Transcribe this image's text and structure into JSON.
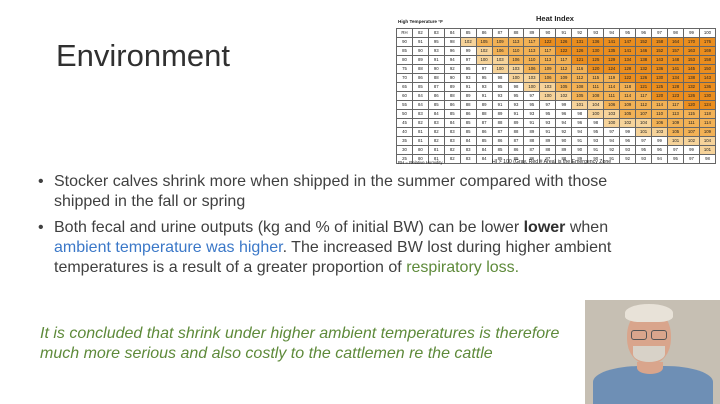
{
  "slide": {
    "title": "Environment",
    "heat_index": {
      "title": "Heat Index",
      "subtitle": "High Temperature °F",
      "header": [
        "RH",
        "82",
        "83",
        "84",
        "85",
        "86",
        "87",
        "88",
        "89",
        "90",
        "91",
        "92",
        "93",
        "94",
        "95",
        "96",
        "97",
        "98",
        "99",
        "100"
      ],
      "rows": [
        [
          "90",
          "91",
          "95",
          "98",
          "102",
          "105",
          "109",
          "113",
          "117",
          "122",
          "126",
          "131",
          "136",
          "141",
          "147",
          "152",
          "158",
          "164",
          "170",
          "176"
        ],
        [
          "85",
          "90",
          "93",
          "96",
          "99",
          "102",
          "106",
          "110",
          "113",
          "117",
          "122",
          "126",
          "130",
          "135",
          "141",
          "146",
          "152",
          "157",
          "163",
          "169"
        ],
        [
          "80",
          "89",
          "91",
          "94",
          "97",
          "100",
          "103",
          "106",
          "110",
          "113",
          "117",
          "121",
          "125",
          "129",
          "134",
          "138",
          "143",
          "148",
          "153",
          "158"
        ],
        [
          "75",
          "88",
          "90",
          "92",
          "95",
          "97",
          "100",
          "103",
          "106",
          "109",
          "112",
          "116",
          "120",
          "124",
          "128",
          "132",
          "136",
          "141",
          "145",
          "150"
        ],
        [
          "70",
          "86",
          "88",
          "90",
          "93",
          "95",
          "98",
          "100",
          "103",
          "106",
          "109",
          "112",
          "115",
          "119",
          "122",
          "126",
          "130",
          "134",
          "138",
          "143"
        ],
        [
          "65",
          "85",
          "87",
          "89",
          "91",
          "93",
          "95",
          "98",
          "100",
          "103",
          "105",
          "108",
          "111",
          "114",
          "118",
          "121",
          "125",
          "128",
          "132",
          "136"
        ],
        [
          "60",
          "84",
          "86",
          "88",
          "89",
          "91",
          "93",
          "95",
          "97",
          "100",
          "102",
          "105",
          "108",
          "111",
          "114",
          "117",
          "120",
          "123",
          "126",
          "130"
        ],
        [
          "55",
          "84",
          "85",
          "86",
          "88",
          "89",
          "91",
          "93",
          "95",
          "97",
          "99",
          "101",
          "104",
          "106",
          "109",
          "112",
          "114",
          "117",
          "120",
          "124"
        ],
        [
          "50",
          "83",
          "84",
          "85",
          "86",
          "88",
          "89",
          "91",
          "93",
          "95",
          "96",
          "98",
          "100",
          "103",
          "105",
          "107",
          "110",
          "113",
          "115",
          "118"
        ],
        [
          "45",
          "82",
          "83",
          "84",
          "85",
          "87",
          "88",
          "89",
          "91",
          "93",
          "94",
          "96",
          "98",
          "100",
          "102",
          "104",
          "106",
          "109",
          "111",
          "114"
        ],
        [
          "40",
          "81",
          "82",
          "83",
          "85",
          "86",
          "87",
          "88",
          "89",
          "91",
          "92",
          "94",
          "95",
          "97",
          "99",
          "101",
          "103",
          "105",
          "107",
          "109"
        ],
        [
          "35",
          "81",
          "82",
          "83",
          "84",
          "85",
          "86",
          "87",
          "88",
          "89",
          "90",
          "91",
          "93",
          "94",
          "96",
          "97",
          "99",
          "101",
          "102",
          "104"
        ],
        [
          "30",
          "80",
          "81",
          "82",
          "83",
          "84",
          "85",
          "86",
          "87",
          "88",
          "89",
          "90",
          "91",
          "92",
          "93",
          "95",
          "96",
          "97",
          "99",
          "101"
        ],
        [
          "25",
          "80",
          "81",
          "82",
          "83",
          "84",
          "85",
          "85",
          "86",
          "87",
          "88",
          "89",
          "90",
          "91",
          "92",
          "93",
          "94",
          "95",
          "97",
          "98"
        ]
      ],
      "footnote_left": "RH = Relative Humidity",
      "footnote_right": "HI > 100 (Gray, Red # Area) is the Emergency Zone"
    },
    "bullet1": {
      "text": "Stocker calves shrink more when shipped in the summer compared with those shipped in the fall or spring"
    },
    "bullet2": {
      "part1": "Both fecal and urine outputs (kg and % of initial BW) can be lower ",
      "bold": "lower",
      "part2": " when ",
      "highlight": "ambient temperature was higher",
      "part3": ". The increased BW lost during higher ambient temperatures is a result of a greater proportion of ",
      "highlight2": "respiratory loss."
    },
    "conclusion": "It is concluded that shrink under higher ambient temperatures is therefore much more serious and also costly to the cattlemen re the cattle",
    "bullet_symbol": "•"
  }
}
